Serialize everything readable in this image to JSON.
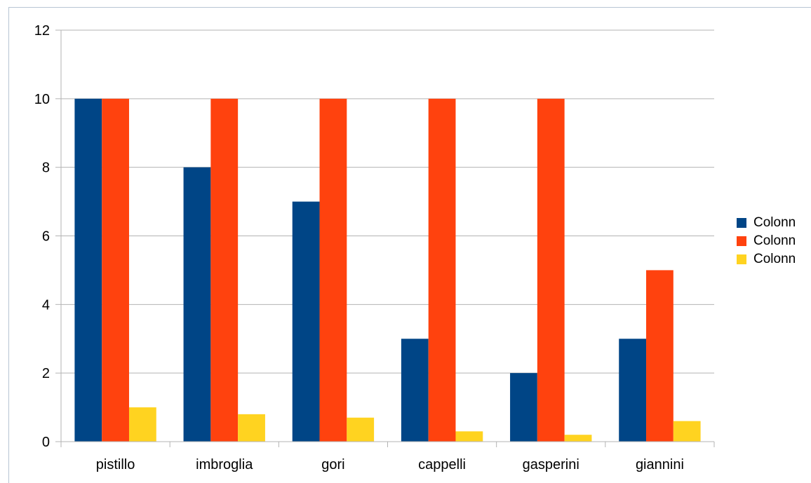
{
  "chart_data": {
    "type": "bar",
    "categories": [
      "pistillo",
      "imbroglia",
      "gori",
      "cappelli",
      "gasperini",
      "giannini"
    ],
    "series": [
      {
        "name": "Colonn",
        "color": "#004586",
        "values": [
          10,
          8,
          7,
          3,
          2,
          3
        ]
      },
      {
        "name": "Colonn",
        "color": "#ff420e",
        "values": [
          10,
          10,
          10,
          10,
          10,
          5
        ]
      },
      {
        "name": "Colonn",
        "color": "#ffd320",
        "values": [
          1,
          0.8,
          0.7,
          0.3,
          0.2,
          0.6
        ]
      }
    ],
    "ylim": [
      0,
      12
    ],
    "yticks": [
      "0",
      "2",
      "4",
      "6",
      "8",
      "10",
      "12"
    ],
    "grid": true,
    "legend_position": "right"
  }
}
